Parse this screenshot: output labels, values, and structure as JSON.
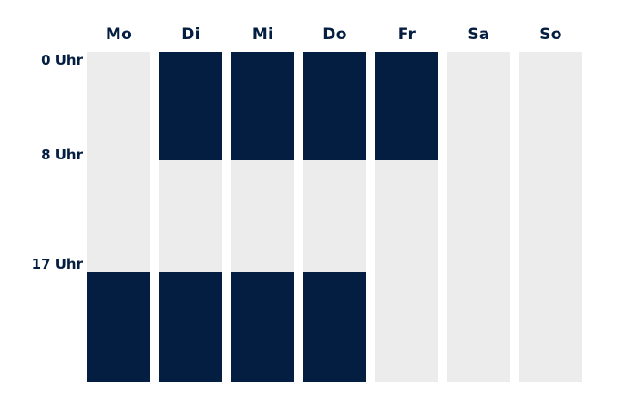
{
  "chart_data": {
    "type": "heatmap",
    "description": "weekly-time-block-schedule",
    "categories": [
      "Mo",
      "Di",
      "Mi",
      "Do",
      "Fr",
      "Sa",
      "So"
    ],
    "time_ticks": [
      {
        "hour": 0,
        "label": "0 Uhr"
      },
      {
        "hour": 8,
        "label": "8 Uhr"
      },
      {
        "hour": 17,
        "label": "17 Uhr"
      }
    ],
    "segments_hours": [
      [
        0,
        8
      ],
      [
        8,
        17
      ],
      [
        17,
        24
      ]
    ],
    "y_axis": {
      "unit": "Uhr",
      "range": [
        0,
        24
      ],
      "grid": false
    },
    "legend": "none",
    "colors": {
      "active": "#041E42",
      "inactive": "#ECECED",
      "label": "#041E42",
      "background": "#FFFFFF"
    },
    "days": [
      {
        "label": "Mo",
        "bands": [
          "inactive",
          "inactive",
          "active"
        ],
        "active_segments": [
          [
            17,
            24
          ]
        ]
      },
      {
        "label": "Di",
        "bands": [
          "active",
          "inactive",
          "active"
        ],
        "active_segments": [
          [
            0,
            8
          ],
          [
            17,
            24
          ]
        ]
      },
      {
        "label": "Mi",
        "bands": [
          "active",
          "inactive",
          "active"
        ],
        "active_segments": [
          [
            0,
            8
          ],
          [
            17,
            24
          ]
        ]
      },
      {
        "label": "Do",
        "bands": [
          "active",
          "inactive",
          "active"
        ],
        "active_segments": [
          [
            0,
            8
          ],
          [
            17,
            24
          ]
        ]
      },
      {
        "label": "Fr",
        "bands": [
          "active",
          "inactive",
          "inactive"
        ],
        "active_segments": [
          [
            0,
            8
          ]
        ]
      },
      {
        "label": "Sa",
        "bands": [
          "inactive",
          "inactive",
          "inactive"
        ],
        "active_segments": []
      },
      {
        "label": "So",
        "bands": [
          "inactive",
          "inactive",
          "inactive"
        ],
        "active_segments": []
      }
    ]
  }
}
